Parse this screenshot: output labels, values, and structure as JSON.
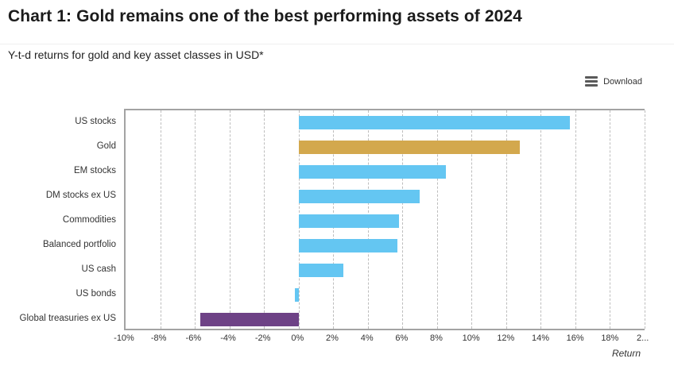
{
  "page": {
    "title": "Chart 1: Gold remains one of the best performing assets of 2024",
    "subtitle": "Y-t-d returns for gold and key asset classes in USD*"
  },
  "toolbar": {
    "download_label": "Download"
  },
  "chart_data": {
    "type": "bar",
    "orientation": "horizontal",
    "title": "Chart 1: Gold remains one of the best performing assets of 2024",
    "subtitle": "Y-t-d returns for gold and key asset classes in USD*",
    "categories": [
      "US stocks",
      "Gold",
      "EM stocks",
      "DM stocks ex US",
      "Commodities",
      "Balanced portfolio",
      "US cash",
      "US bonds",
      "Global treasuries ex US"
    ],
    "values": [
      15.7,
      12.8,
      8.5,
      7.0,
      5.8,
      5.7,
      2.6,
      -0.2,
      -5.7
    ],
    "unit": "%",
    "bar_colors": [
      "#64C6F2",
      "#D3A84D",
      "#64C6F2",
      "#64C6F2",
      "#64C6F2",
      "#64C6F2",
      "#64C6F2",
      "#64C6F2",
      "#6E4286"
    ],
    "colors": {
      "default_blue": "#64C6F2",
      "gold": "#D3A84D",
      "purple": "#6E4286"
    },
    "xlabel": "Return",
    "xlim": [
      -10,
      20
    ],
    "x_tick_step": 2,
    "x_tick_labels": [
      "-10%",
      "-8%",
      "-6%",
      "-4%",
      "-2%",
      "0%",
      "2%",
      "4%",
      "6%",
      "8%",
      "10%",
      "12%",
      "14%",
      "16%",
      "18%",
      "2..."
    ],
    "grid": "dashed-vertical",
    "legend": "none"
  }
}
